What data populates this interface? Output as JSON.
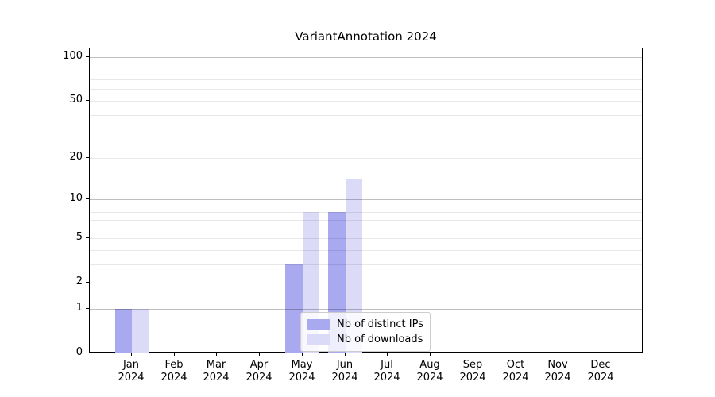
{
  "title": "VariantAnnotation 2024",
  "chart_data": {
    "type": "bar",
    "title": "VariantAnnotation 2024",
    "categories": [
      "Jan",
      "Feb",
      "Mar",
      "Apr",
      "May",
      "Jun",
      "Jul",
      "Aug",
      "Sep",
      "Oct",
      "Nov",
      "Dec"
    ],
    "category_sublabel": "2024",
    "series": [
      {
        "name": "Nb of distinct IPs",
        "color": "#a9a9f0",
        "values": [
          1,
          0,
          0,
          0,
          3,
          8,
          0,
          0,
          0,
          0,
          0,
          0
        ]
      },
      {
        "name": "Nb of downloads",
        "color": "#dbdbf8",
        "values": [
          1,
          0,
          0,
          0,
          8,
          14,
          0,
          0,
          0,
          0,
          0,
          0
        ]
      }
    ],
    "xlabel": "",
    "ylabel": "",
    "yscale": "log1p",
    "ylim": [
      0,
      114
    ],
    "yticks": [
      0,
      1,
      2,
      5,
      10,
      20,
      50,
      100
    ],
    "major_gridlines": [
      1,
      10,
      100
    ],
    "minor_gridlines": [
      2,
      3,
      4,
      5,
      6,
      7,
      8,
      9,
      20,
      30,
      40,
      50,
      60,
      70,
      80,
      90
    ],
    "grid": true,
    "grid_colors": {
      "major": "rgba(0,0,0,0.25)",
      "minor": "rgba(0,0,0,0.09)"
    },
    "axis_color": "#000000",
    "legend_position": "lower center inside",
    "legend_border_color": "#cccccc"
  }
}
